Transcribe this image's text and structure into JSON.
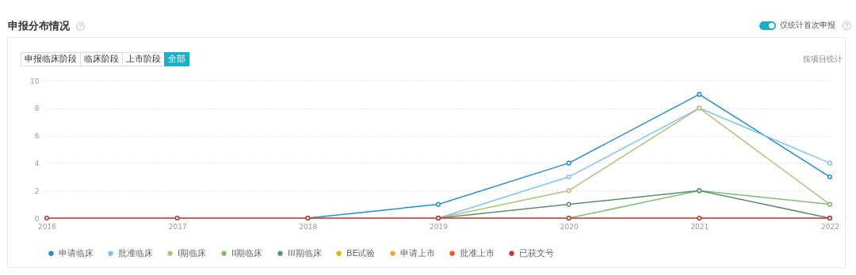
{
  "chart_data": {
    "type": "line",
    "title": "申报分布情况",
    "annotations": [
      "仅统计首次申报",
      "申报临床阶段",
      "临床阶段",
      "上市阶段",
      "全部",
      "按项目统计"
    ],
    "categories": [
      "2016",
      "2017",
      "2018",
      "2019",
      "2020",
      "2021",
      "2022"
    ],
    "series": [
      {
        "name": "申请临床",
        "color": "#1f8fcf",
        "values": [
          null,
          null,
          0,
          1,
          4,
          9,
          3
        ]
      },
      {
        "name": "批准临床",
        "color": "#7fc4f5",
        "values": [
          null,
          null,
          null,
          0,
          3,
          8,
          4
        ]
      },
      {
        "name": "I期临床",
        "color": "#b5bf7a",
        "values": [
          null,
          null,
          null,
          0,
          2,
          8,
          1
        ]
      },
      {
        "name": "II期临床",
        "color": "#7dbf6e",
        "values": [
          null,
          null,
          null,
          null,
          0,
          2,
          1
        ]
      },
      {
        "name": "III期临床",
        "color": "#5a8f6e",
        "values": [
          null,
          null,
          null,
          0,
          1,
          2,
          0
        ]
      },
      {
        "name": "BE试验",
        "color": "#d4b800",
        "values": [
          null,
          null,
          null,
          null,
          null,
          null,
          null
        ]
      },
      {
        "name": "申请上市",
        "color": "#f5a623",
        "values": [
          null,
          null,
          null,
          null,
          null,
          null,
          null
        ]
      },
      {
        "name": "批准上市",
        "color": "#f05a1a",
        "values": [
          null,
          null,
          null,
          null,
          null,
          null,
          null
        ]
      },
      {
        "name": "已获文号",
        "color": "#c0392b",
        "values": [
          0,
          0,
          0,
          0,
          0,
          0,
          0
        ]
      }
    ],
    "ylim": [
      0,
      10
    ],
    "yticks": [
      0,
      2,
      4,
      6,
      8,
      10
    ],
    "grid": "y",
    "legend": "bottom",
    "marker": "circle",
    "line_style": "solid"
  }
}
